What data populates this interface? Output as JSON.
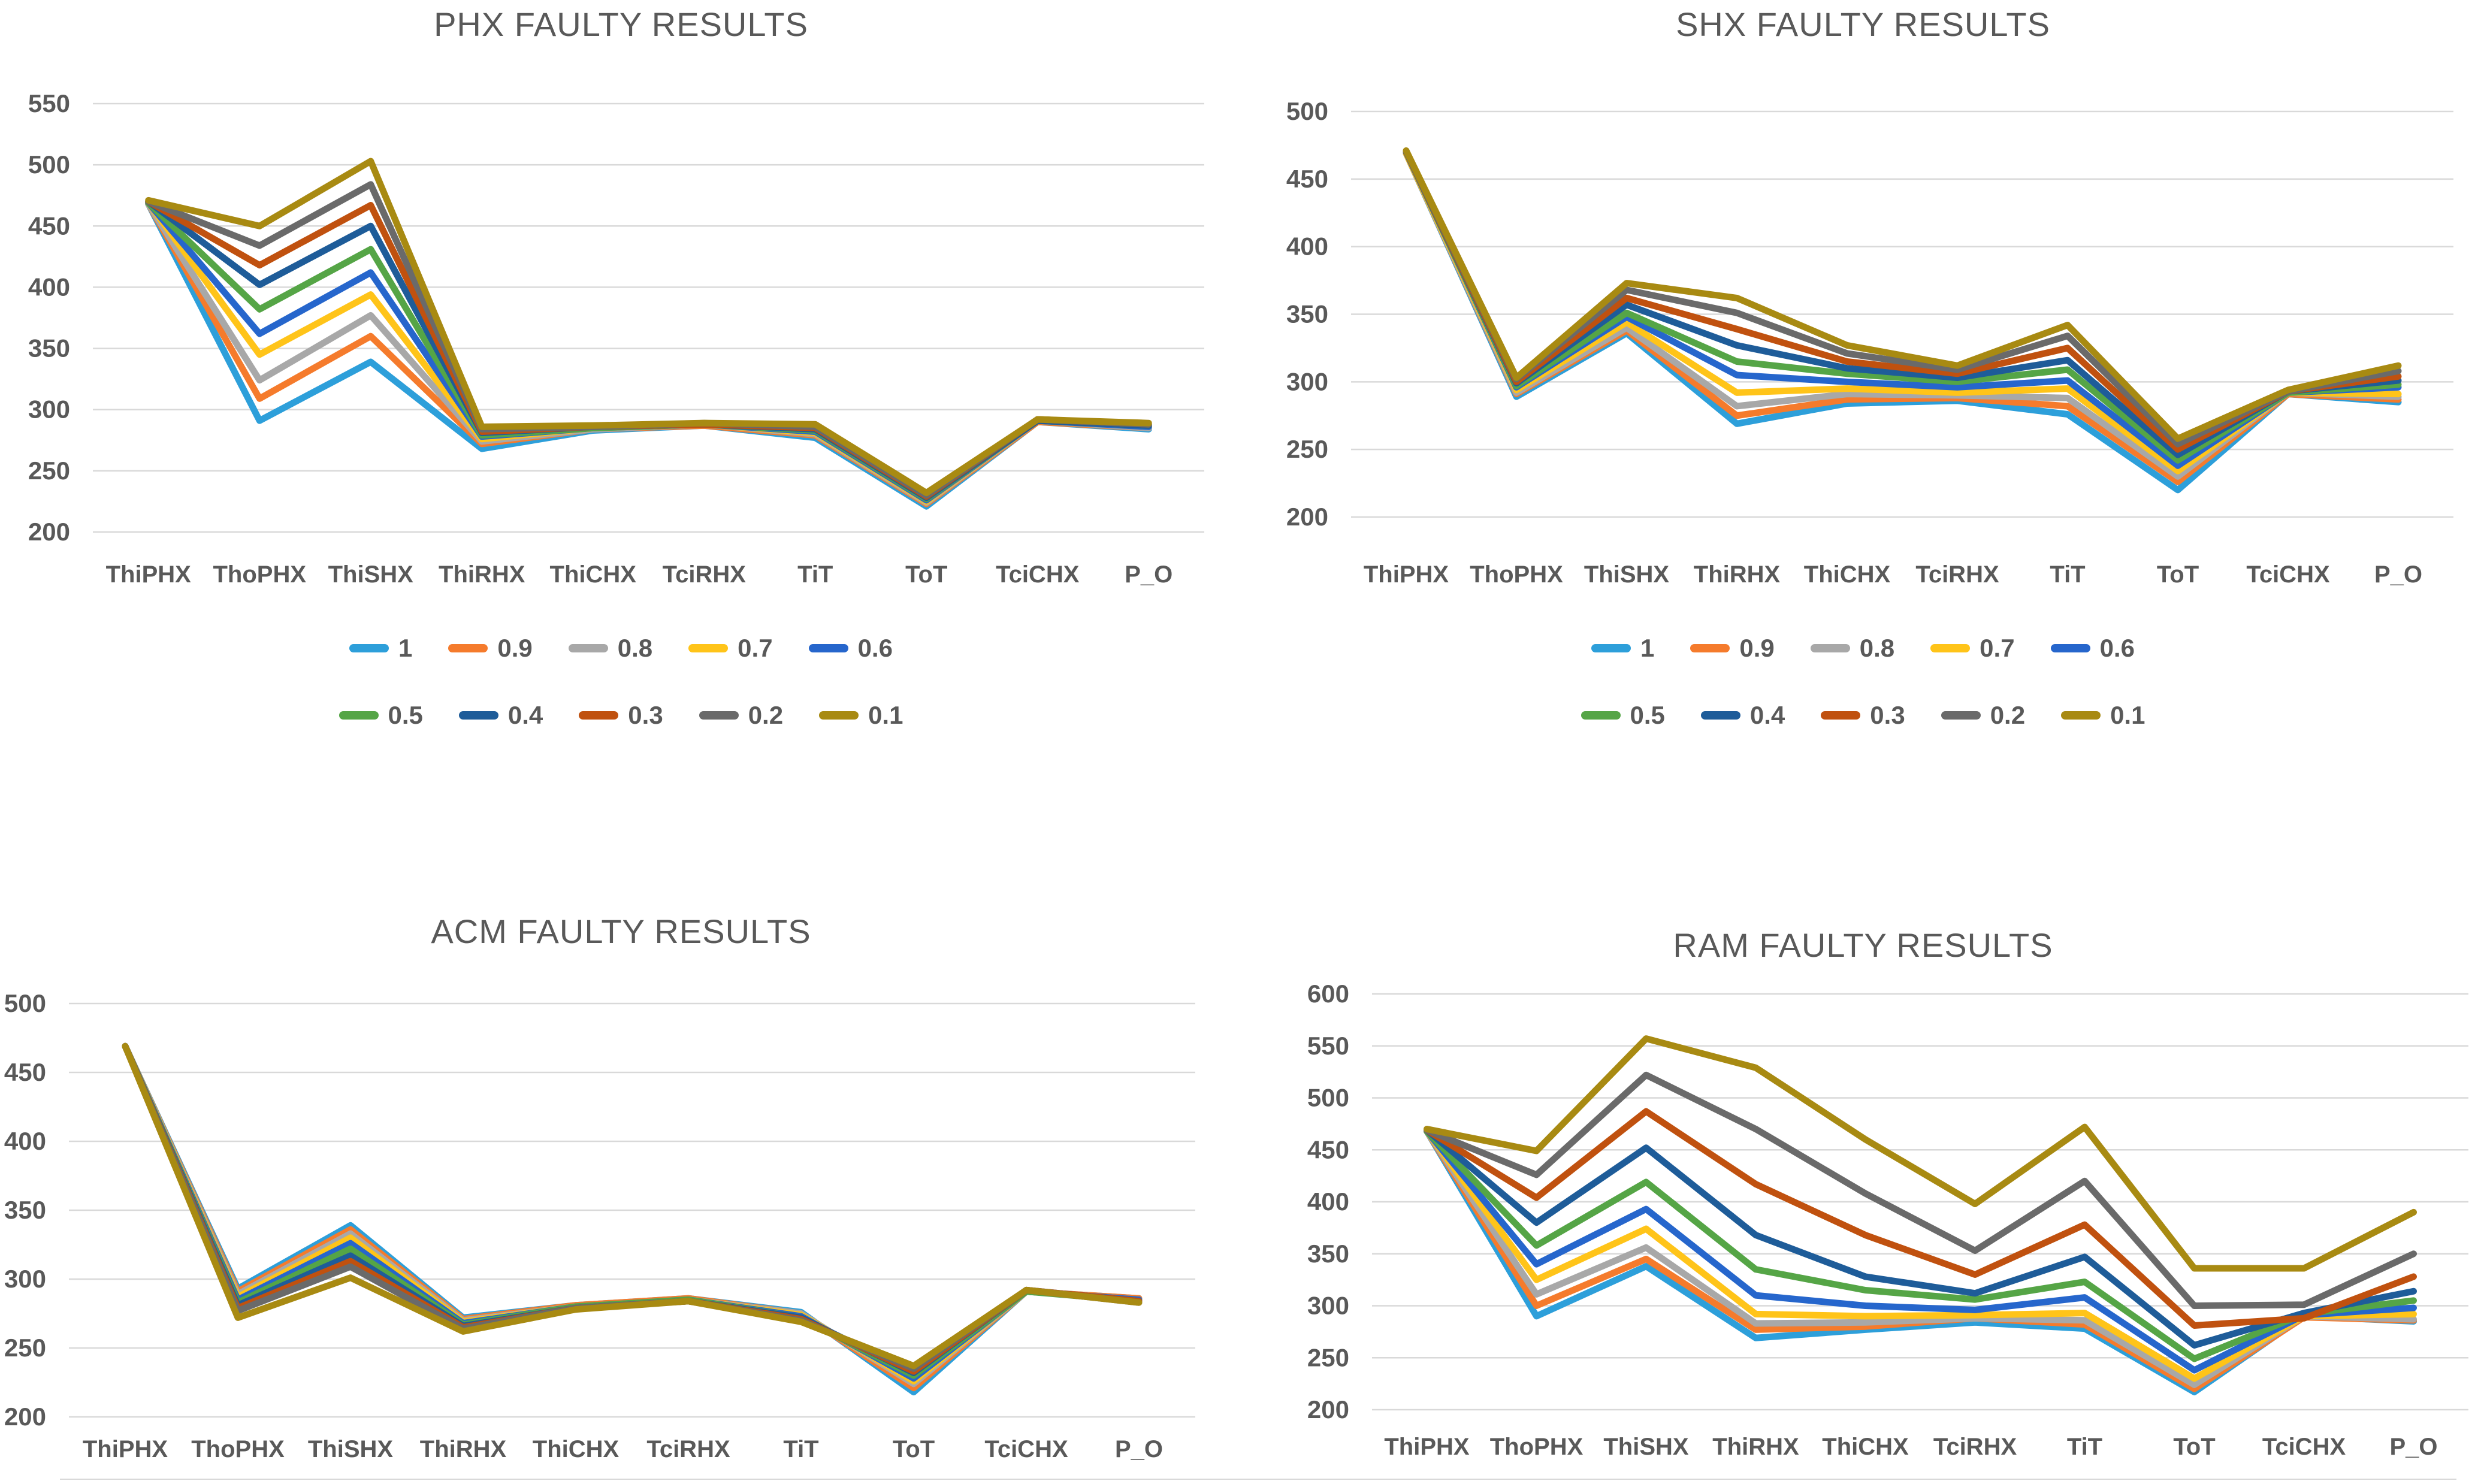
{
  "page": {
    "background": "#FFFFFF",
    "text_color": "#595959",
    "gridline_color": "#D9D9D9"
  },
  "legend": {
    "rows": [
      [
        "1",
        "0.9",
        "0.8",
        "0.7",
        "0.6"
      ],
      [
        "0.5",
        "0.4",
        "0.3",
        "0.2",
        "0.1"
      ]
    ]
  },
  "palette": {
    "1": "#2D9FDA",
    "0.9": "#F57B2C",
    "0.8": "#A8A8A8",
    "0.7": "#FFC419",
    "0.6": "#2666CC",
    "0.5": "#55A546",
    "0.4": "#1E5C99",
    "0.3": "#C0510F",
    "0.2": "#6A6A6A",
    "0.1": "#A88A12"
  },
  "chart_data": [
    {
      "type": "line",
      "title": "PHX FAULTY RESULTS",
      "categories": [
        "ThiPHX",
        "ThoPHX",
        "ThiSHX",
        "ThiRHX",
        "ThiCHX",
        "TciRHX",
        "TiT",
        "ToT",
        "TciCHX",
        "P_O"
      ],
      "ylim": [
        200,
        550
      ],
      "yticks": [
        550,
        500,
        450,
        400,
        350,
        300,
        250,
        200
      ],
      "grid": true,
      "legend_position": "bottom",
      "has_legend": true,
      "series": [
        {
          "name": "1",
          "color": "#2D9FDA",
          "values": [
            468,
            291,
            339,
            268,
            283,
            287,
            277,
            221,
            290,
            284
          ]
        },
        {
          "name": "0.9",
          "color": "#F57B2C",
          "values": [
            468,
            309,
            360,
            272,
            284,
            287,
            279,
            223,
            290,
            285
          ]
        },
        {
          "name": "0.8",
          "color": "#A8A8A8",
          "values": [
            468,
            324,
            377,
            274,
            284,
            288,
            280,
            224,
            291,
            285
          ]
        },
        {
          "name": "0.7",
          "color": "#FFC419",
          "values": [
            469,
            345,
            394,
            276,
            285,
            288,
            281,
            225,
            291,
            286
          ]
        },
        {
          "name": "0.6",
          "color": "#2666CC",
          "values": [
            469,
            362,
            412,
            278,
            285,
            288,
            282,
            226,
            291,
            286
          ]
        },
        {
          "name": "0.5",
          "color": "#55A546",
          "values": [
            469,
            382,
            431,
            279,
            285,
            288,
            283,
            227,
            291,
            287
          ]
        },
        {
          "name": "0.4",
          "color": "#1E5C99",
          "values": [
            470,
            402,
            450,
            281,
            286,
            288,
            284,
            228,
            291,
            287
          ]
        },
        {
          "name": "0.3",
          "color": "#C0510F",
          "values": [
            470,
            418,
            467,
            282,
            286,
            288,
            285,
            229,
            292,
            288
          ]
        },
        {
          "name": "0.2",
          "color": "#6A6A6A",
          "values": [
            470,
            434,
            484,
            284,
            286,
            289,
            286,
            230,
            292,
            288
          ]
        },
        {
          "name": "0.1",
          "color": "#A88A12",
          "values": [
            471,
            450,
            503,
            286,
            287,
            289,
            288,
            232,
            292,
            289
          ]
        }
      ]
    },
    {
      "type": "line",
      "title": "SHX FAULTY RESULTS",
      "categories": [
        "ThiPHX",
        "ThoPHX",
        "ThiSHX",
        "ThiRHX",
        "ThiCHX",
        "TciRHX",
        "TiT",
        "ToT",
        "TciCHX",
        "P_O"
      ],
      "ylim": [
        200,
        500
      ],
      "yticks": [
        500,
        450,
        400,
        350,
        300,
        250,
        200
      ],
      "grid": true,
      "legend_position": "bottom",
      "has_legend": true,
      "series": [
        {
          "name": "1",
          "color": "#2D9FDA",
          "values": [
            469,
            289,
            336,
            269,
            284,
            286,
            276,
            220,
            291,
            285
          ]
        },
        {
          "name": "0.9",
          "color": "#F57B2C",
          "values": [
            469,
            291,
            338,
            275,
            287,
            288,
            282,
            226,
            291,
            287
          ]
        },
        {
          "name": "0.8",
          "color": "#A8A8A8",
          "values": [
            469,
            292,
            340,
            282,
            291,
            290,
            288,
            230,
            292,
            289
          ]
        },
        {
          "name": "0.7",
          "color": "#FFC419",
          "values": [
            469,
            294,
            344,
            292,
            295,
            292,
            295,
            234,
            292,
            291
          ]
        },
        {
          "name": "0.6",
          "color": "#2666CC",
          "values": [
            470,
            296,
            348,
            305,
            300,
            296,
            301,
            238,
            292,
            296
          ]
        },
        {
          "name": "0.5",
          "color": "#55A546",
          "values": [
            470,
            297,
            351,
            315,
            306,
            300,
            309,
            242,
            292,
            298
          ]
        },
        {
          "name": "0.4",
          "color": "#1E5C99",
          "values": [
            470,
            299,
            357,
            327,
            310,
            303,
            316,
            246,
            293,
            301
          ]
        },
        {
          "name": "0.3",
          "color": "#C0510F",
          "values": [
            470,
            300,
            362,
            339,
            315,
            306,
            325,
            250,
            293,
            304
          ]
        },
        {
          "name": "0.2",
          "color": "#6A6A6A",
          "values": [
            470,
            302,
            368,
            351,
            321,
            309,
            334,
            254,
            293,
            308
          ]
        },
        {
          "name": "0.1",
          "color": "#A88A12",
          "values": [
            471,
            303,
            373,
            362,
            327,
            312,
            342,
            258,
            294,
            312
          ]
        }
      ]
    },
    {
      "type": "line",
      "title": "ACM FAULTY RESULTS",
      "categories": [
        "ThiPHX",
        "ThoPHX",
        "ThiSHX",
        "ThiRHX",
        "ThiCHX",
        "TciRHX",
        "TiT",
        "ToT",
        "TciCHX",
        "P_O"
      ],
      "ylim": [
        200,
        500
      ],
      "yticks": [
        500,
        450,
        400,
        350,
        300,
        250,
        200
      ],
      "grid": true,
      "legend_position": "none",
      "has_legend": false,
      "series": [
        {
          "name": "1",
          "color": "#2D9FDA",
          "values": [
            469,
            293,
            339,
            272,
            281,
            286,
            276,
            218,
            291,
            286
          ]
        },
        {
          "name": "0.9",
          "color": "#F57B2C",
          "values": [
            469,
            291,
            336,
            271,
            281,
            286,
            275,
            221,
            291,
            286
          ]
        },
        {
          "name": "0.8",
          "color": "#A8A8A8",
          "values": [
            469,
            289,
            333,
            270,
            280,
            285,
            275,
            224,
            291,
            285
          ]
        },
        {
          "name": "0.7",
          "color": "#FFC419",
          "values": [
            469,
            287,
            330,
            269,
            280,
            285,
            274,
            226,
            291,
            285
          ]
        },
        {
          "name": "0.6",
          "color": "#2666CC",
          "values": [
            469,
            285,
            326,
            268,
            280,
            285,
            273,
            228,
            291,
            285
          ]
        },
        {
          "name": "0.5",
          "color": "#55A546",
          "values": [
            469,
            283,
            322,
            267,
            280,
            285,
            272,
            230,
            291,
            284
          ]
        },
        {
          "name": "0.4",
          "color": "#1E5C99",
          "values": [
            469,
            281,
            317,
            266,
            279,
            284,
            272,
            232,
            292,
            284
          ]
        },
        {
          "name": "0.3",
          "color": "#C0510F",
          "values": [
            469,
            279,
            313,
            265,
            279,
            284,
            271,
            233,
            292,
            284
          ]
        },
        {
          "name": "0.2",
          "color": "#6A6A6A",
          "values": [
            469,
            277,
            309,
            264,
            279,
            284,
            270,
            235,
            292,
            283
          ]
        },
        {
          "name": "0.1",
          "color": "#A88A12",
          "values": [
            469,
            272,
            301,
            262,
            278,
            284,
            269,
            237,
            292,
            283
          ]
        }
      ]
    },
    {
      "type": "line",
      "title": "RAM FAULTY RESULTS",
      "categories": [
        "ThiPHX",
        "ThoPHX",
        "ThiSHX",
        "ThiRHX",
        "ThiCHX",
        "TciRHX",
        "TiT",
        "ToT",
        "TciCHX",
        "P_O"
      ],
      "ylim": [
        200,
        600
      ],
      "yticks": [
        600,
        550,
        500,
        450,
        400,
        350,
        300,
        250,
        200
      ],
      "grid": true,
      "legend_position": "none",
      "has_legend": false,
      "series": [
        {
          "name": "1",
          "color": "#2D9FDA",
          "values": [
            468,
            290,
            338,
            269,
            277,
            284,
            278,
            217,
            290,
            285
          ]
        },
        {
          "name": "0.9",
          "color": "#F57B2C",
          "values": [
            468,
            300,
            345,
            277,
            280,
            288,
            282,
            220,
            289,
            286
          ]
        },
        {
          "name": "0.8",
          "color": "#A8A8A8",
          "values": [
            468,
            311,
            356,
            283,
            284,
            288,
            286,
            224,
            290,
            287
          ]
        },
        {
          "name": "0.7",
          "color": "#FFC419",
          "values": [
            468,
            325,
            374,
            292,
            290,
            291,
            293,
            230,
            290,
            292
          ]
        },
        {
          "name": "0.6",
          "color": "#2666CC",
          "values": [
            468,
            340,
            393,
            310,
            300,
            296,
            308,
            238,
            291,
            298
          ]
        },
        {
          "name": "0.5",
          "color": "#55A546",
          "values": [
            468,
            358,
            419,
            335,
            315,
            306,
            323,
            249,
            292,
            305
          ]
        },
        {
          "name": "0.4",
          "color": "#1E5C99",
          "values": [
            469,
            380,
            452,
            368,
            328,
            312,
            347,
            262,
            293,
            314
          ]
        },
        {
          "name": "0.3",
          "color": "#C0510F",
          "values": [
            469,
            404,
            487,
            417,
            368,
            330,
            378,
            281,
            288,
            328
          ]
        },
        {
          "name": "0.2",
          "color": "#6A6A6A",
          "values": [
            469,
            426,
            522,
            470,
            408,
            353,
            420,
            300,
            301,
            350
          ]
        },
        {
          "name": "0.1",
          "color": "#A88A12",
          "values": [
            470,
            449,
            557,
            529,
            460,
            398,
            472,
            336,
            336,
            390
          ]
        }
      ]
    }
  ]
}
